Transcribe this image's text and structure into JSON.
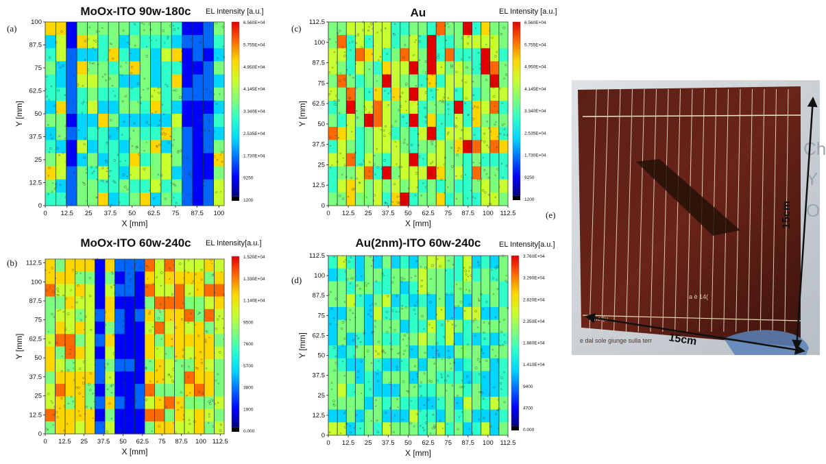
{
  "chart_data": [
    {
      "type": "heatmap",
      "panel": "(a)",
      "title": "MoOx-ITO 90w-180c",
      "colorbar_title": "EL Intensity [a.u.]",
      "colorbar_ticks": [
        "6.560E+04",
        "5.755E+04",
        "4.950E+04",
        "4.145E+04",
        "3.340E+04",
        "2.535E+04",
        "1.730E+04",
        "9250",
        "1200"
      ],
      "colorbar_range": [
        1200,
        65600
      ],
      "xlabel": "X [mm]",
      "ylabel": "Y [mm]",
      "xticks": [
        "0",
        "12.5",
        "25",
        "37.5",
        "50",
        "62.5",
        "75",
        "87.5",
        "100"
      ],
      "yticks": [
        "100",
        "87.5",
        "75",
        "62.5",
        "50",
        "37.5",
        "25",
        "12.5",
        "0"
      ],
      "xlim": [
        0,
        103
      ],
      "ylim": [
        0,
        100
      ],
      "dominant_color": "cyan-green",
      "strips": 17
    },
    {
      "type": "heatmap",
      "panel": "(b)",
      "title": "MoOx-ITO 60w-240c",
      "colorbar_title": "EL Intensity[a.u.]",
      "colorbar_ticks": [
        "1.520E+04",
        "1.330E+04",
        "1.140E+04",
        "9500",
        "7600",
        "5700",
        "3800",
        "1900",
        "0.000"
      ],
      "colorbar_range": [
        0,
        15200
      ],
      "xlabel": "X [mm]",
      "ylabel": "Y [mm]",
      "xticks": [
        "0",
        "12.5",
        "25",
        "37.5",
        "50",
        "62.5",
        "75",
        "87.5",
        "100",
        "112.5"
      ],
      "yticks": [
        "112.5",
        "100",
        "87.5",
        "75",
        "62.5",
        "50",
        "37.5",
        "25",
        "12.5",
        "0"
      ],
      "xlim": [
        0,
        115
      ],
      "ylim": [
        0,
        115
      ],
      "dominant_color": "green-yellow",
      "strips": 18
    },
    {
      "type": "heatmap",
      "panel": "(c)",
      "title": "Au",
      "colorbar_title": "EL Intensity [a.u.]",
      "colorbar_ticks": [
        "6.560E+04",
        "5.755E+04",
        "4.950E+04",
        "4.145E+04",
        "3.340E+04",
        "2.535E+04",
        "1.730E+04",
        "9250",
        "1200"
      ],
      "colorbar_range": [
        1200,
        65600
      ],
      "xlabel": "X [mm]",
      "ylabel": "Y [mm]",
      "xticks": [
        "0",
        "12.5",
        "25",
        "37.5",
        "50",
        "62.5",
        "75",
        "87.5",
        "100",
        "112.5"
      ],
      "yticks": [
        "112.5",
        "100",
        "87.5",
        "75",
        "62.5",
        "50",
        "37.5",
        "25",
        "12.5",
        "0"
      ],
      "xlim": [
        0,
        112.5
      ],
      "ylim": [
        0,
        112.5
      ],
      "dominant_color": "green-orange",
      "strips": 20
    },
    {
      "type": "heatmap",
      "panel": "(d)",
      "title": "Au(2nm)-ITO 60w-240c",
      "colorbar_title": "EL Intensity[a.u.]",
      "colorbar_ticks": [
        "3.760E+04",
        "3.290E+04",
        "2.820E+04",
        "2.350E+04",
        "1.880E+04",
        "1.410E+04",
        "9400",
        "4700",
        "0.000"
      ],
      "colorbar_range": [
        0,
        37600
      ],
      "xlabel": "X [mm]",
      "ylabel": "Y [mm]",
      "xticks": [
        "0",
        "12.5",
        "25",
        "37.5",
        "50",
        "62.5",
        "75",
        "87.5",
        "100",
        "112.5"
      ],
      "yticks": [
        "112.5",
        "100",
        "87.5",
        "75",
        "62.5",
        "50",
        "37.5",
        "25",
        "12.5",
        "0"
      ],
      "xlim": [
        0,
        112.5
      ],
      "ylim": [
        0,
        112.5
      ],
      "dominant_color": "cyan-green",
      "strips": 20
    }
  ],
  "photo": {
    "panel": "(e)",
    "width_label": "15cm",
    "height_label": "15cm",
    "overlay_lines": [
      "a è 14(",
      "iche (u",
      "e dal sole giunge sulla terr",
      "Ch",
      "Y",
      "O"
    ]
  },
  "colors": {
    "jet": [
      "#00007a",
      "#0000ff",
      "#0066ff",
      "#00d5ff",
      "#30ffc8",
      "#7cff7c",
      "#c8ff30",
      "#ffd500",
      "#ff6a00",
      "#e00000",
      "#8a0000"
    ],
    "photo_cell": "#4a1812",
    "photo_bg": "#c9cfd3",
    "arrow": "#111111"
  }
}
